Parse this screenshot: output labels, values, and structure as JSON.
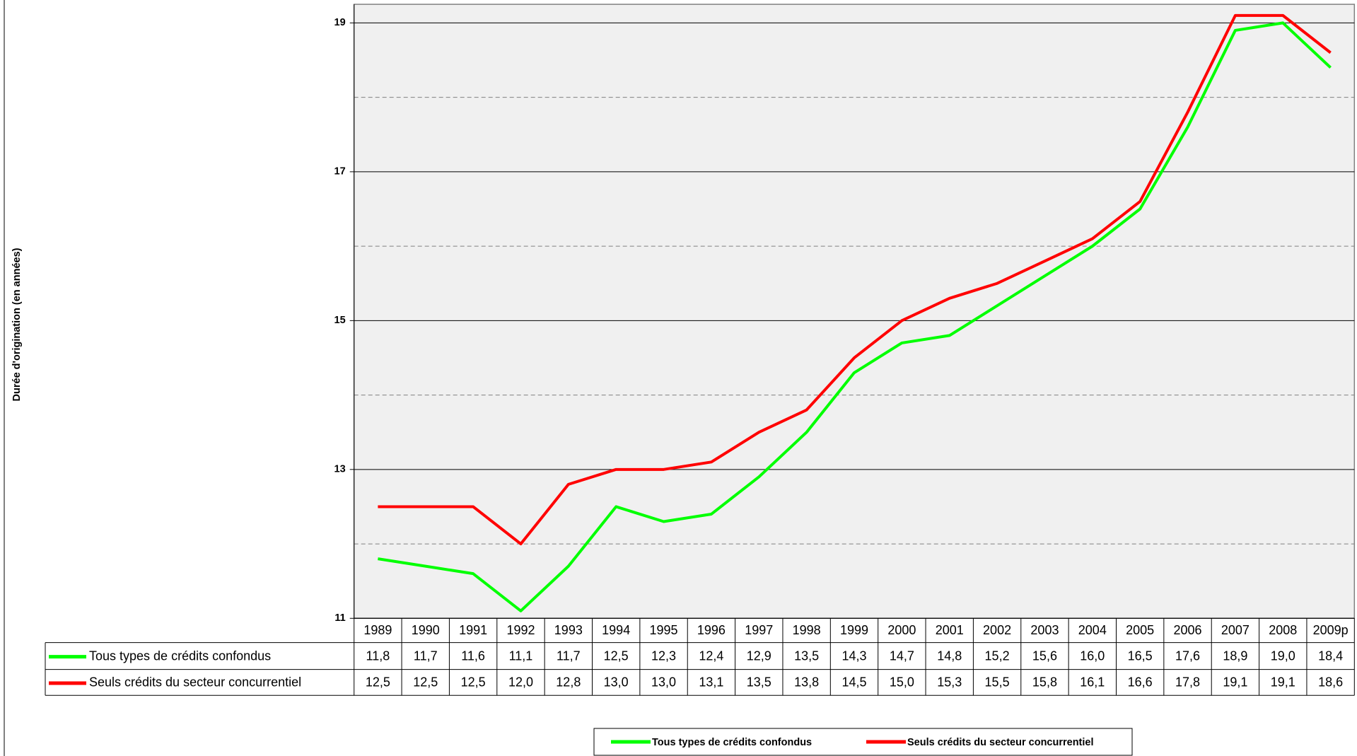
{
  "chart_data": {
    "type": "line",
    "y_label": "Durée d'origination (en années)",
    "categories": [
      "1989",
      "1990",
      "1991",
      "1992",
      "1993",
      "1994",
      "1995",
      "1996",
      "1997",
      "1998",
      "1999",
      "2000",
      "2001",
      "2002",
      "2003",
      "2004",
      "2005",
      "2006",
      "2007",
      "2008",
      "2009p"
    ],
    "series": [
      {
        "name": "Tous types de crédits confondus",
        "color": "#00ff00",
        "values": [
          11.8,
          11.7,
          11.6,
          11.1,
          11.7,
          12.5,
          12.3,
          12.4,
          12.9,
          13.5,
          14.3,
          14.7,
          14.8,
          15.2,
          15.6,
          16.0,
          16.5,
          17.6,
          18.9,
          19.0,
          18.4
        ],
        "value_labels": [
          "11,8",
          "11,7",
          "11,6",
          "11,1",
          "11,7",
          "12,5",
          "12,3",
          "12,4",
          "12,9",
          "13,5",
          "14,3",
          "14,7",
          "14,8",
          "15,2",
          "15,6",
          "16,0",
          "16,5",
          "17,6",
          "18,9",
          "19,0",
          "18,4"
        ]
      },
      {
        "name": "Seuls crédits du secteur concurrentiel",
        "color": "#ff0000",
        "values": [
          12.5,
          12.5,
          12.5,
          12.0,
          12.8,
          13.0,
          13.0,
          13.1,
          13.5,
          13.8,
          14.5,
          15.0,
          15.3,
          15.5,
          15.8,
          16.1,
          16.6,
          17.8,
          19.1,
          19.1,
          18.6
        ],
        "value_labels": [
          "12,5",
          "12,5",
          "12,5",
          "12,0",
          "12,8",
          "13,0",
          "13,0",
          "13,1",
          "13,5",
          "13,8",
          "14,5",
          "15,0",
          "15,3",
          "15,5",
          "15,8",
          "16,1",
          "16,6",
          "17,8",
          "19,1",
          "19,1",
          "18,6"
        ]
      }
    ],
    "ylim": [
      11,
      19.25
    ],
    "yticks": [
      11,
      13,
      15,
      17,
      19
    ],
    "minor_yticks": [
      12,
      14,
      16,
      18
    ],
    "grid": true,
    "legend": "bottom"
  }
}
